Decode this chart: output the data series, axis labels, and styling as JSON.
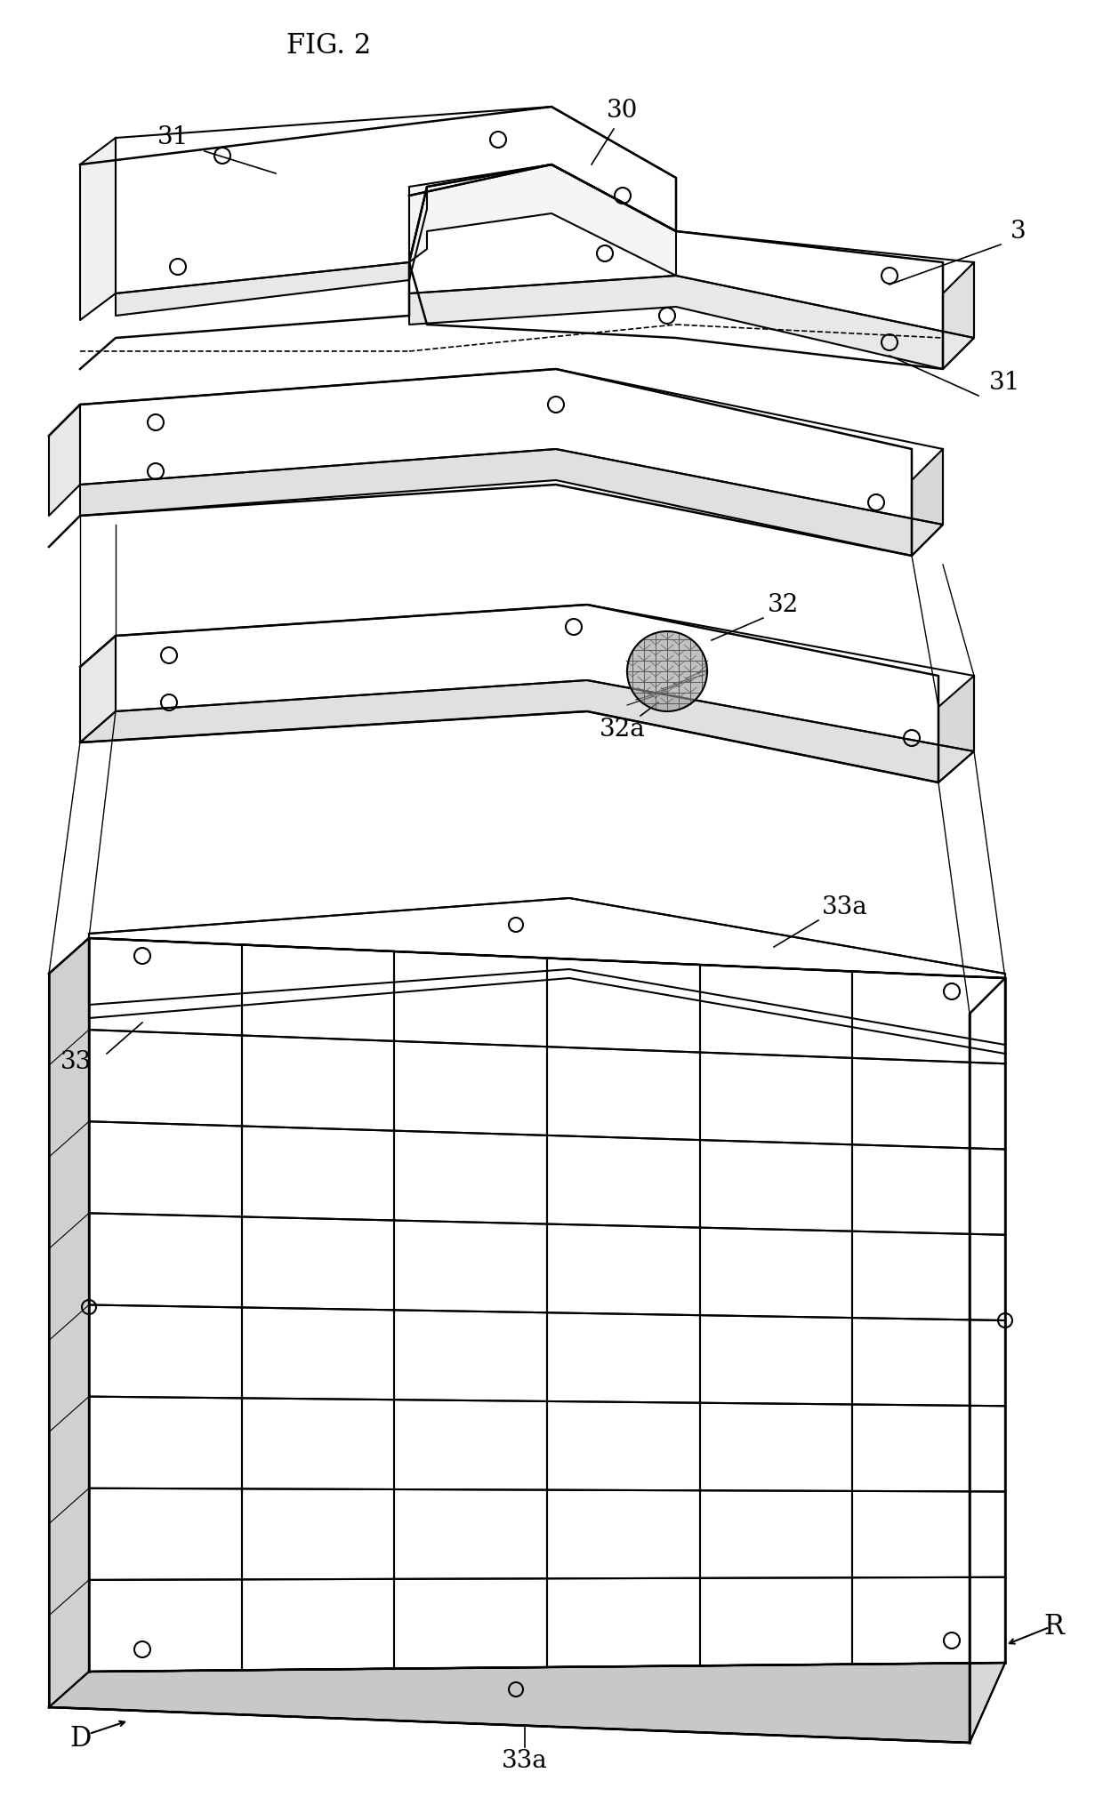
{
  "title": "FIG. 2",
  "bg_color": "#ffffff",
  "line_color": "#000000",
  "label_color": "#000000",
  "labels": {
    "fig": "FIG. 2",
    "l3": "3",
    "l30": "30",
    "l31_top": "31",
    "l31_bot": "31",
    "l32": "32",
    "l32a": "32a",
    "l33": "33",
    "l33a_top": "33a",
    "l33a_bot": "33a",
    "lR": "R",
    "lD": "D"
  }
}
